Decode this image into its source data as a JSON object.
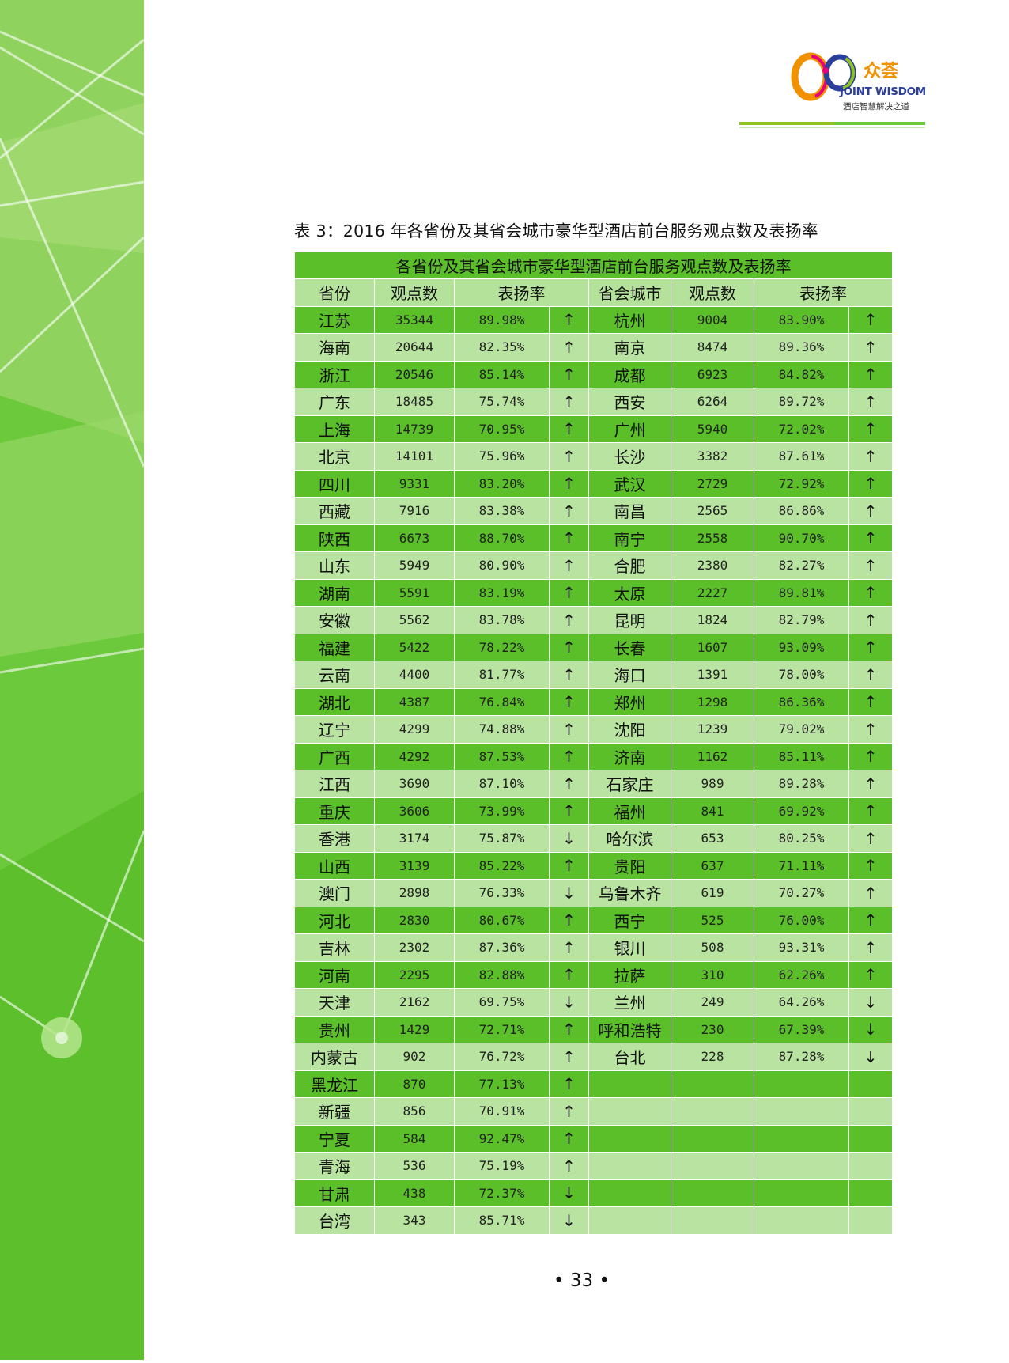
{
  "brand": {
    "name": "众荟",
    "name_en": "JOINT WISDOM",
    "tagline": "酒店智慧解决之道"
  },
  "caption": "表 3：2016 年各省份及其省会城市豪华型酒店前台服务观点数及表扬率",
  "table": {
    "title": "各省份及其省会城市豪华型酒店前台服务观点数及表扬率",
    "headers": [
      "省份",
      "观点数",
      "表扬率",
      "省会城市",
      "观点数",
      "表扬率"
    ],
    "rows": [
      {
        "province": "江苏",
        "p_count": "35344",
        "p_rate": "89.98%",
        "p_trend": "↑",
        "city": "杭州",
        "c_count": "9004",
        "c_rate": "83.90%",
        "c_trend": "↑"
      },
      {
        "province": "海南",
        "p_count": "20644",
        "p_rate": "82.35%",
        "p_trend": "↑",
        "city": "南京",
        "c_count": "8474",
        "c_rate": "89.36%",
        "c_trend": "↑"
      },
      {
        "province": "浙江",
        "p_count": "20546",
        "p_rate": "85.14%",
        "p_trend": "↑",
        "city": "成都",
        "c_count": "6923",
        "c_rate": "84.82%",
        "c_trend": "↑"
      },
      {
        "province": "广东",
        "p_count": "18485",
        "p_rate": "75.74%",
        "p_trend": "↑",
        "city": "西安",
        "c_count": "6264",
        "c_rate": "89.72%",
        "c_trend": "↑"
      },
      {
        "province": "上海",
        "p_count": "14739",
        "p_rate": "70.95%",
        "p_trend": "↑",
        "city": "广州",
        "c_count": "5940",
        "c_rate": "72.02%",
        "c_trend": "↑"
      },
      {
        "province": "北京",
        "p_count": "14101",
        "p_rate": "75.96%",
        "p_trend": "↑",
        "city": "长沙",
        "c_count": "3382",
        "c_rate": "87.61%",
        "c_trend": "↑"
      },
      {
        "province": "四川",
        "p_count": "9331",
        "p_rate": "83.20%",
        "p_trend": "↑",
        "city": "武汉",
        "c_count": "2729",
        "c_rate": "72.92%",
        "c_trend": "↑"
      },
      {
        "province": "西藏",
        "p_count": "7916",
        "p_rate": "83.38%",
        "p_trend": "↑",
        "city": "南昌",
        "c_count": "2565",
        "c_rate": "86.86%",
        "c_trend": "↑"
      },
      {
        "province": "陕西",
        "p_count": "6673",
        "p_rate": "88.70%",
        "p_trend": "↑",
        "city": "南宁",
        "c_count": "2558",
        "c_rate": "90.70%",
        "c_trend": "↑"
      },
      {
        "province": "山东",
        "p_count": "5949",
        "p_rate": "80.90%",
        "p_trend": "↑",
        "city": "合肥",
        "c_count": "2380",
        "c_rate": "82.27%",
        "c_trend": "↑"
      },
      {
        "province": "湖南",
        "p_count": "5591",
        "p_rate": "83.19%",
        "p_trend": "↑",
        "city": "太原",
        "c_count": "2227",
        "c_rate": "89.81%",
        "c_trend": "↑"
      },
      {
        "province": "安徽",
        "p_count": "5562",
        "p_rate": "83.78%",
        "p_trend": "↑",
        "city": "昆明",
        "c_count": "1824",
        "c_rate": "82.79%",
        "c_trend": "↑"
      },
      {
        "province": "福建",
        "p_count": "5422",
        "p_rate": "78.22%",
        "p_trend": "↑",
        "city": "长春",
        "c_count": "1607",
        "c_rate": "93.09%",
        "c_trend": "↑"
      },
      {
        "province": "云南",
        "p_count": "4400",
        "p_rate": "81.77%",
        "p_trend": "↑",
        "city": "海口",
        "c_count": "1391",
        "c_rate": "78.00%",
        "c_trend": "↑"
      },
      {
        "province": "湖北",
        "p_count": "4387",
        "p_rate": "76.84%",
        "p_trend": "↑",
        "city": "郑州",
        "c_count": "1298",
        "c_rate": "86.36%",
        "c_trend": "↑"
      },
      {
        "province": "辽宁",
        "p_count": "4299",
        "p_rate": "74.88%",
        "p_trend": "↑",
        "city": "沈阳",
        "c_count": "1239",
        "c_rate": "79.02%",
        "c_trend": "↑"
      },
      {
        "province": "广西",
        "p_count": "4292",
        "p_rate": "87.53%",
        "p_trend": "↑",
        "city": "济南",
        "c_count": "1162",
        "c_rate": "85.11%",
        "c_trend": "↑"
      },
      {
        "province": "江西",
        "p_count": "3690",
        "p_rate": "87.10%",
        "p_trend": "↑",
        "city": "石家庄",
        "c_count": "989",
        "c_rate": "89.28%",
        "c_trend": "↑"
      },
      {
        "province": "重庆",
        "p_count": "3606",
        "p_rate": "73.99%",
        "p_trend": "↑",
        "city": "福州",
        "c_count": "841",
        "c_rate": "69.92%",
        "c_trend": "↑"
      },
      {
        "province": "香港",
        "p_count": "3174",
        "p_rate": "75.87%",
        "p_trend": "↓",
        "city": "哈尔滨",
        "c_count": "653",
        "c_rate": "80.25%",
        "c_trend": "↑"
      },
      {
        "province": "山西",
        "p_count": "3139",
        "p_rate": "85.22%",
        "p_trend": "↑",
        "city": "贵阳",
        "c_count": "637",
        "c_rate": "71.11%",
        "c_trend": "↑"
      },
      {
        "province": "澳门",
        "p_count": "2898",
        "p_rate": "76.33%",
        "p_trend": "↓",
        "city": "乌鲁木齐",
        "c_count": "619",
        "c_rate": "70.27%",
        "c_trend": "↑"
      },
      {
        "province": "河北",
        "p_count": "2830",
        "p_rate": "80.67%",
        "p_trend": "↑",
        "city": "西宁",
        "c_count": "525",
        "c_rate": "76.00%",
        "c_trend": "↑"
      },
      {
        "province": "吉林",
        "p_count": "2302",
        "p_rate": "87.36%",
        "p_trend": "↑",
        "city": "银川",
        "c_count": "508",
        "c_rate": "93.31%",
        "c_trend": "↑"
      },
      {
        "province": "河南",
        "p_count": "2295",
        "p_rate": "82.88%",
        "p_trend": "↑",
        "city": "拉萨",
        "c_count": "310",
        "c_rate": "62.26%",
        "c_trend": "↑"
      },
      {
        "province": "天津",
        "p_count": "2162",
        "p_rate": "69.75%",
        "p_trend": "↓",
        "city": "兰州",
        "c_count": "249",
        "c_rate": "64.26%",
        "c_trend": "↓"
      },
      {
        "province": "贵州",
        "p_count": "1429",
        "p_rate": "72.71%",
        "p_trend": "↑",
        "city": "呼和浩特",
        "c_count": "230",
        "c_rate": "67.39%",
        "c_trend": "↓"
      },
      {
        "province": "内蒙古",
        "p_count": "902",
        "p_rate": "76.72%",
        "p_trend": "↑",
        "city": "台北",
        "c_count": "228",
        "c_rate": "87.28%",
        "c_trend": "↓"
      },
      {
        "province": "黑龙江",
        "p_count": "870",
        "p_rate": "77.13%",
        "p_trend": "↑",
        "city": "",
        "c_count": "",
        "c_rate": "",
        "c_trend": ""
      },
      {
        "province": "新疆",
        "p_count": "856",
        "p_rate": "70.91%",
        "p_trend": "↑",
        "city": "",
        "c_count": "",
        "c_rate": "",
        "c_trend": ""
      },
      {
        "province": "宁夏",
        "p_count": "584",
        "p_rate": "92.47%",
        "p_trend": "↑",
        "city": "",
        "c_count": "",
        "c_rate": "",
        "c_trend": ""
      },
      {
        "province": "青海",
        "p_count": "536",
        "p_rate": "75.19%",
        "p_trend": "↑",
        "city": "",
        "c_count": "",
        "c_rate": "",
        "c_trend": ""
      },
      {
        "province": "甘肃",
        "p_count": "438",
        "p_rate": "72.37%",
        "p_trend": "↓",
        "city": "",
        "c_count": "",
        "c_rate": "",
        "c_trend": ""
      },
      {
        "province": "台湾",
        "p_count": "343",
        "p_rate": "85.71%",
        "p_trend": "↓",
        "city": "",
        "c_count": "",
        "c_rate": "",
        "c_trend": ""
      }
    ]
  },
  "page_number": "• 33 •"
}
